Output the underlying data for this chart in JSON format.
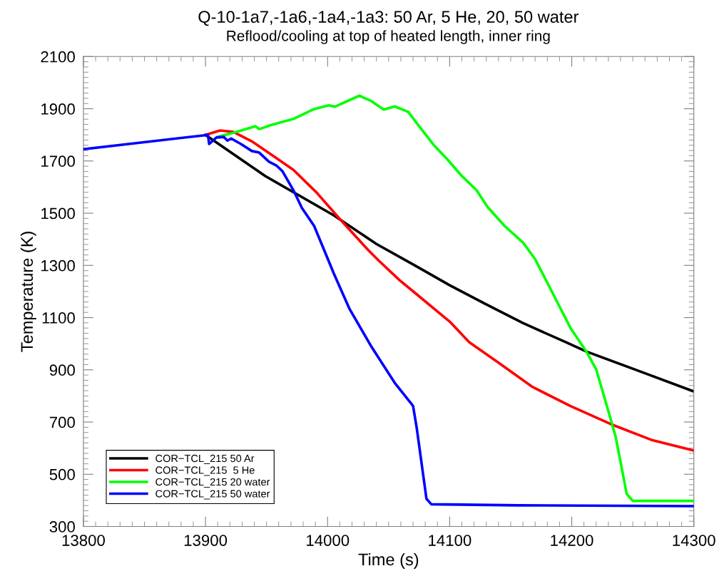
{
  "chart_data": {
    "type": "line",
    "title": "Q-10-1a7,-1a6,-1a4,-1a3: 50 Ar, 5 He, 20, 50 water",
    "subtitle": "Reflood/cooling at top of heated length, inner ring",
    "xlabel": "Time (s)",
    "ylabel": "Temperature (K)",
    "xlim": [
      13800,
      14300
    ],
    "xticks": [
      13800,
      13900,
      14000,
      14100,
      14200,
      14300
    ],
    "ylim": [
      300,
      2100
    ],
    "yticks": [
      300,
      500,
      700,
      900,
      1100,
      1300,
      1500,
      1700,
      1900,
      2100
    ],
    "grid": false,
    "legend": "bottom left",
    "marker": "none",
    "line_style": "solid",
    "series": [
      {
        "name": "COR−TCL_215 50 Ar",
        "color": "#000000",
        "x": [
          13900,
          13949,
          14005,
          14040,
          14071,
          14100,
          14129,
          14160,
          14195,
          14212,
          14253,
          14300
        ],
        "values": [
          1800,
          1642,
          1492,
          1382,
          1301,
          1224,
          1153,
          1079,
          1006,
          970,
          899,
          817
        ]
      },
      {
        "name": "COR−TCL_215  5 He",
        "color": "#ff0000",
        "x": [
          13900,
          13912,
          13923,
          13938,
          13954,
          13972,
          13991,
          14009,
          14033,
          14042,
          14059,
          14071,
          14100,
          14116,
          14141,
          14168,
          14199,
          14232,
          14265,
          14300
        ],
        "values": [
          1800,
          1817,
          1811,
          1775,
          1724,
          1666,
          1579,
          1483,
          1360,
          1318,
          1243,
          1197,
          1085,
          1006,
          924,
          834,
          761,
          692,
          632,
          591
        ]
      },
      {
        "name": "COR−TCL_215 20 water",
        "color": "#00ff00",
        "x": [
          13910,
          13925,
          13941,
          13944,
          13954,
          13972,
          13989,
          14001,
          14006,
          14026,
          14036,
          14046,
          14055,
          14066,
          14075,
          14087,
          14098,
          14110,
          14122,
          14131,
          14145,
          14160,
          14170,
          14184,
          14199,
          14212,
          14220,
          14230,
          14236,
          14245,
          14250,
          14300
        ],
        "values": [
          1792,
          1811,
          1833,
          1822,
          1838,
          1861,
          1899,
          1913,
          1908,
          1950,
          1929,
          1897,
          1909,
          1888,
          1833,
          1761,
          1707,
          1642,
          1588,
          1524,
          1451,
          1388,
          1324,
          1197,
          1060,
          970,
          902,
          742,
          643,
          425,
          398,
          398
        ]
      },
      {
        "name": "COR−TCL_215 50 water",
        "color": "#0000ff",
        "x": [
          13800,
          13902,
          13903,
          13909,
          13915,
          13918,
          13921,
          13929,
          13938,
          13944,
          13952,
          13958,
          13963,
          13972,
          13979,
          13989,
          13997,
          14005,
          14018,
          14036,
          14055,
          14070,
          14073,
          14081,
          14085,
          14156,
          14300
        ],
        "values": [
          1745,
          1800,
          1765,
          1790,
          1792,
          1778,
          1786,
          1765,
          1738,
          1732,
          1697,
          1683,
          1661,
          1588,
          1520,
          1451,
          1361,
          1270,
          1133,
          988,
          850,
          762,
          678,
          406,
          385,
          381,
          378
        ]
      }
    ]
  }
}
